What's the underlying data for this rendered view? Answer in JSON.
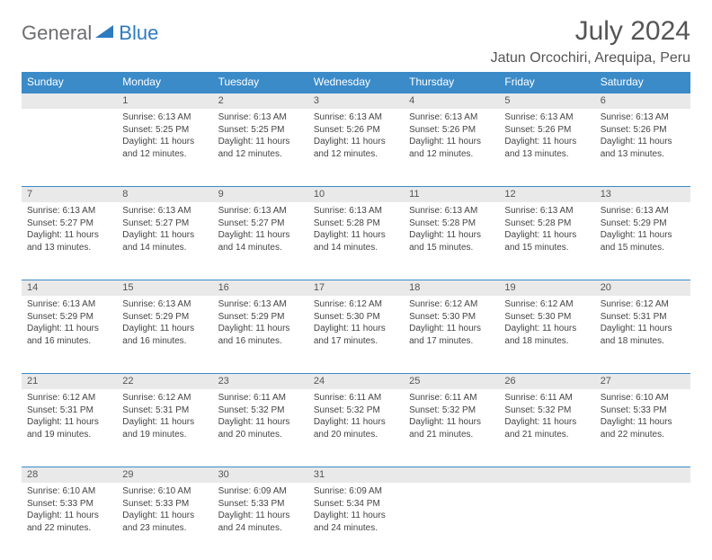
{
  "logo": {
    "general": "General",
    "blue": "Blue"
  },
  "title": "July 2024",
  "location": "Jatun Orcochiri, Arequipa, Peru",
  "day_headers": [
    "Sunday",
    "Monday",
    "Tuesday",
    "Wednesday",
    "Thursday",
    "Friday",
    "Saturday"
  ],
  "colors": {
    "header_bg": "#3b8bc9",
    "header_text": "#ffffff",
    "daynum_bg": "#e9e9e9",
    "border": "#3b8bc9",
    "logo_gray": "#6d6e71",
    "logo_blue": "#2f7bbf"
  },
  "weeks": [
    [
      {
        "num": "",
        "sunrise": "",
        "sunset": "",
        "daylight": ""
      },
      {
        "num": "1",
        "sunrise": "Sunrise: 6:13 AM",
        "sunset": "Sunset: 5:25 PM",
        "daylight": "Daylight: 11 hours and 12 minutes."
      },
      {
        "num": "2",
        "sunrise": "Sunrise: 6:13 AM",
        "sunset": "Sunset: 5:25 PM",
        "daylight": "Daylight: 11 hours and 12 minutes."
      },
      {
        "num": "3",
        "sunrise": "Sunrise: 6:13 AM",
        "sunset": "Sunset: 5:26 PM",
        "daylight": "Daylight: 11 hours and 12 minutes."
      },
      {
        "num": "4",
        "sunrise": "Sunrise: 6:13 AM",
        "sunset": "Sunset: 5:26 PM",
        "daylight": "Daylight: 11 hours and 12 minutes."
      },
      {
        "num": "5",
        "sunrise": "Sunrise: 6:13 AM",
        "sunset": "Sunset: 5:26 PM",
        "daylight": "Daylight: 11 hours and 13 minutes."
      },
      {
        "num": "6",
        "sunrise": "Sunrise: 6:13 AM",
        "sunset": "Sunset: 5:26 PM",
        "daylight": "Daylight: 11 hours and 13 minutes."
      }
    ],
    [
      {
        "num": "7",
        "sunrise": "Sunrise: 6:13 AM",
        "sunset": "Sunset: 5:27 PM",
        "daylight": "Daylight: 11 hours and 13 minutes."
      },
      {
        "num": "8",
        "sunrise": "Sunrise: 6:13 AM",
        "sunset": "Sunset: 5:27 PM",
        "daylight": "Daylight: 11 hours and 14 minutes."
      },
      {
        "num": "9",
        "sunrise": "Sunrise: 6:13 AM",
        "sunset": "Sunset: 5:27 PM",
        "daylight": "Daylight: 11 hours and 14 minutes."
      },
      {
        "num": "10",
        "sunrise": "Sunrise: 6:13 AM",
        "sunset": "Sunset: 5:28 PM",
        "daylight": "Daylight: 11 hours and 14 minutes."
      },
      {
        "num": "11",
        "sunrise": "Sunrise: 6:13 AM",
        "sunset": "Sunset: 5:28 PM",
        "daylight": "Daylight: 11 hours and 15 minutes."
      },
      {
        "num": "12",
        "sunrise": "Sunrise: 6:13 AM",
        "sunset": "Sunset: 5:28 PM",
        "daylight": "Daylight: 11 hours and 15 minutes."
      },
      {
        "num": "13",
        "sunrise": "Sunrise: 6:13 AM",
        "sunset": "Sunset: 5:29 PM",
        "daylight": "Daylight: 11 hours and 15 minutes."
      }
    ],
    [
      {
        "num": "14",
        "sunrise": "Sunrise: 6:13 AM",
        "sunset": "Sunset: 5:29 PM",
        "daylight": "Daylight: 11 hours and 16 minutes."
      },
      {
        "num": "15",
        "sunrise": "Sunrise: 6:13 AM",
        "sunset": "Sunset: 5:29 PM",
        "daylight": "Daylight: 11 hours and 16 minutes."
      },
      {
        "num": "16",
        "sunrise": "Sunrise: 6:13 AM",
        "sunset": "Sunset: 5:29 PM",
        "daylight": "Daylight: 11 hours and 16 minutes."
      },
      {
        "num": "17",
        "sunrise": "Sunrise: 6:12 AM",
        "sunset": "Sunset: 5:30 PM",
        "daylight": "Daylight: 11 hours and 17 minutes."
      },
      {
        "num": "18",
        "sunrise": "Sunrise: 6:12 AM",
        "sunset": "Sunset: 5:30 PM",
        "daylight": "Daylight: 11 hours and 17 minutes."
      },
      {
        "num": "19",
        "sunrise": "Sunrise: 6:12 AM",
        "sunset": "Sunset: 5:30 PM",
        "daylight": "Daylight: 11 hours and 18 minutes."
      },
      {
        "num": "20",
        "sunrise": "Sunrise: 6:12 AM",
        "sunset": "Sunset: 5:31 PM",
        "daylight": "Daylight: 11 hours and 18 minutes."
      }
    ],
    [
      {
        "num": "21",
        "sunrise": "Sunrise: 6:12 AM",
        "sunset": "Sunset: 5:31 PM",
        "daylight": "Daylight: 11 hours and 19 minutes."
      },
      {
        "num": "22",
        "sunrise": "Sunrise: 6:12 AM",
        "sunset": "Sunset: 5:31 PM",
        "daylight": "Daylight: 11 hours and 19 minutes."
      },
      {
        "num": "23",
        "sunrise": "Sunrise: 6:11 AM",
        "sunset": "Sunset: 5:32 PM",
        "daylight": "Daylight: 11 hours and 20 minutes."
      },
      {
        "num": "24",
        "sunrise": "Sunrise: 6:11 AM",
        "sunset": "Sunset: 5:32 PM",
        "daylight": "Daylight: 11 hours and 20 minutes."
      },
      {
        "num": "25",
        "sunrise": "Sunrise: 6:11 AM",
        "sunset": "Sunset: 5:32 PM",
        "daylight": "Daylight: 11 hours and 21 minutes."
      },
      {
        "num": "26",
        "sunrise": "Sunrise: 6:11 AM",
        "sunset": "Sunset: 5:32 PM",
        "daylight": "Daylight: 11 hours and 21 minutes."
      },
      {
        "num": "27",
        "sunrise": "Sunrise: 6:10 AM",
        "sunset": "Sunset: 5:33 PM",
        "daylight": "Daylight: 11 hours and 22 minutes."
      }
    ],
    [
      {
        "num": "28",
        "sunrise": "Sunrise: 6:10 AM",
        "sunset": "Sunset: 5:33 PM",
        "daylight": "Daylight: 11 hours and 22 minutes."
      },
      {
        "num": "29",
        "sunrise": "Sunrise: 6:10 AM",
        "sunset": "Sunset: 5:33 PM",
        "daylight": "Daylight: 11 hours and 23 minutes."
      },
      {
        "num": "30",
        "sunrise": "Sunrise: 6:09 AM",
        "sunset": "Sunset: 5:33 PM",
        "daylight": "Daylight: 11 hours and 24 minutes."
      },
      {
        "num": "31",
        "sunrise": "Sunrise: 6:09 AM",
        "sunset": "Sunset: 5:34 PM",
        "daylight": "Daylight: 11 hours and 24 minutes."
      },
      {
        "num": "",
        "sunrise": "",
        "sunset": "",
        "daylight": ""
      },
      {
        "num": "",
        "sunrise": "",
        "sunset": "",
        "daylight": ""
      },
      {
        "num": "",
        "sunrise": "",
        "sunset": "",
        "daylight": ""
      }
    ]
  ]
}
